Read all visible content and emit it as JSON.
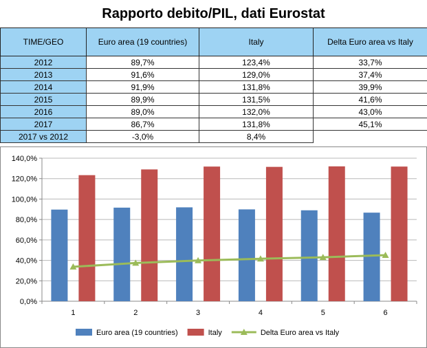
{
  "title": "Rapporto debito/PIL, dati Eurostat",
  "table": {
    "headers": [
      "TIME/GEO",
      "Euro area (19 countries)",
      "Italy",
      "Delta Euro area vs Italy"
    ],
    "rows": [
      [
        "2012",
        "89,7%",
        "123,4%",
        "33,7%"
      ],
      [
        "2013",
        "91,6%",
        "129,0%",
        "37,4%"
      ],
      [
        "2014",
        "91,9%",
        "131,8%",
        "39,9%"
      ],
      [
        "2015",
        "89,9%",
        "131,5%",
        "41,6%"
      ],
      [
        "2016",
        "89,0%",
        "132,0%",
        "43,0%"
      ],
      [
        "2017",
        "86,7%",
        "131,8%",
        "45,1%"
      ],
      [
        "2017 vs 2012",
        "-3,0%",
        "8,4%",
        ""
      ]
    ]
  },
  "chart_data": {
    "type": "bar",
    "categories": [
      "1",
      "2",
      "3",
      "4",
      "5",
      "6"
    ],
    "ylim": [
      0,
      140
    ],
    "yticks": [
      "0,0%",
      "20,0%",
      "40,0%",
      "60,0%",
      "80,0%",
      "100,0%",
      "120,0%",
      "140,0%"
    ],
    "series": [
      {
        "name": "Euro area (19 countries)",
        "kind": "bar",
        "color": "#4f81bd",
        "values": [
          89.7,
          91.6,
          91.9,
          89.9,
          89.0,
          86.7
        ]
      },
      {
        "name": "Italy",
        "kind": "bar",
        "color": "#c0504d",
        "values": [
          123.4,
          129.0,
          131.8,
          131.5,
          132.0,
          131.8
        ]
      },
      {
        "name": "Delta Euro area vs Italy",
        "kind": "line",
        "color": "#9bbb59",
        "marker": "triangle",
        "values": [
          33.7,
          37.4,
          39.9,
          41.6,
          43.0,
          45.1
        ]
      }
    ],
    "grid": true,
    "legend_position": "bottom"
  }
}
